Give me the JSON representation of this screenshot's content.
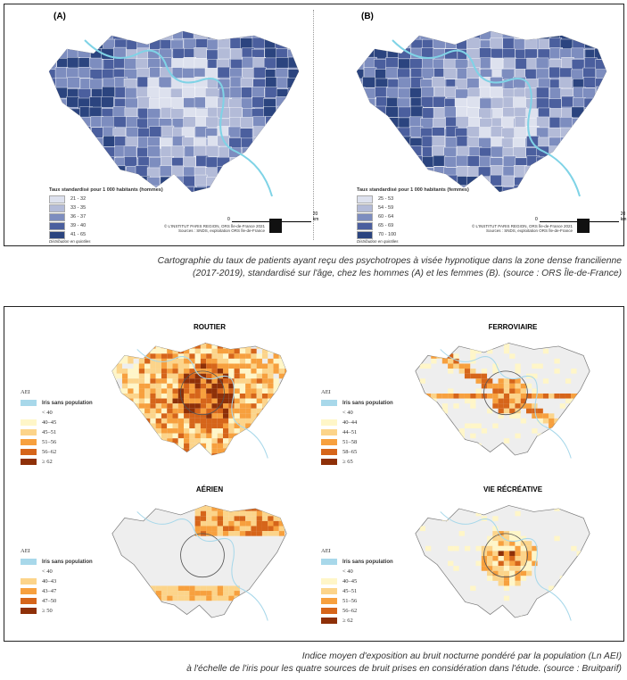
{
  "figure1": {
    "panels": [
      {
        "label": "(A)",
        "legend_title": "Taux standardisé pour 1 000 habitants (hommes)",
        "classes": [
          "21 - 32",
          "33 - 35",
          "36 - 37",
          "39 - 40",
          "41 - 65"
        ],
        "note": "Distribution en quintiles",
        "scale": "0",
        "scale_end": "20 km",
        "credit1": "© L'INSTITUT PARIS REGION, ORS Île-de-France 2021",
        "credit2": "Sources : SNDS, exploitation ORS Île-de-France"
      },
      {
        "label": "(B)",
        "legend_title": "Taux standardisé pour 1 000 habitants (femmes)",
        "classes": [
          "25 - 53",
          "54 - 59",
          "60 - 64",
          "65 - 69",
          "70 - 100"
        ],
        "note": "Distribution en quintiles",
        "scale": "0",
        "scale_end": "20 km",
        "credit1": "© L'INSTITUT PARIS REGION, ORS Île-de-France 2021",
        "credit2": "Sources : SNDS, exploitation ORS Île-de-France"
      }
    ],
    "colors": [
      "#dde1ee",
      "#b3bbd8",
      "#7d8dbf",
      "#4b5f9e",
      "#2b447f"
    ],
    "caption": [
      "Cartographie du taux de patients ayant reçu des psychotropes à visée hypnotique dans la zone dense francilienne",
      "(2017-2019), standardisé sur l'âge, chez les hommes (A) et les femmes (B). (source : ORS Île-de-France)"
    ]
  },
  "figure2": {
    "iris_label": "Iris sans population",
    "legend_title": "AEI",
    "iris_color": "#a8d8ea",
    "colors": [
      "#ffffff",
      "#fff6c8",
      "#fcd48a",
      "#f7a03e",
      "#d6651a",
      "#8e3008"
    ],
    "maps": [
      {
        "title": "ROUTIER",
        "classes": [
          "< 40",
          "40–45",
          "45–51",
          "51–56",
          "56–62",
          "≥ 62"
        ]
      },
      {
        "title": "FERROVIAIRE",
        "classes": [
          "< 40",
          "40–44",
          "44–51",
          "51–58",
          "58–65",
          "≥ 65"
        ]
      },
      {
        "title": "AÉRIEN",
        "classes": [
          "< 40",
          "40–43",
          "43–47",
          "47–50",
          "≥ 50"
        ]
      },
      {
        "title": "VIE RÉCRÉATIVE",
        "classes": [
          "< 40",
          "40–45",
          "45–51",
          "51–56",
          "56–62",
          "≥ 62"
        ]
      }
    ],
    "caption": [
      "Indice moyen d'exposition au bruit nocturne pondéré par la population (Ln AEI)",
      "à l'échelle de l'iris pour les quatre sources de bruit prises en considération dans l'étude. (source : Bruitparif)"
    ]
  }
}
